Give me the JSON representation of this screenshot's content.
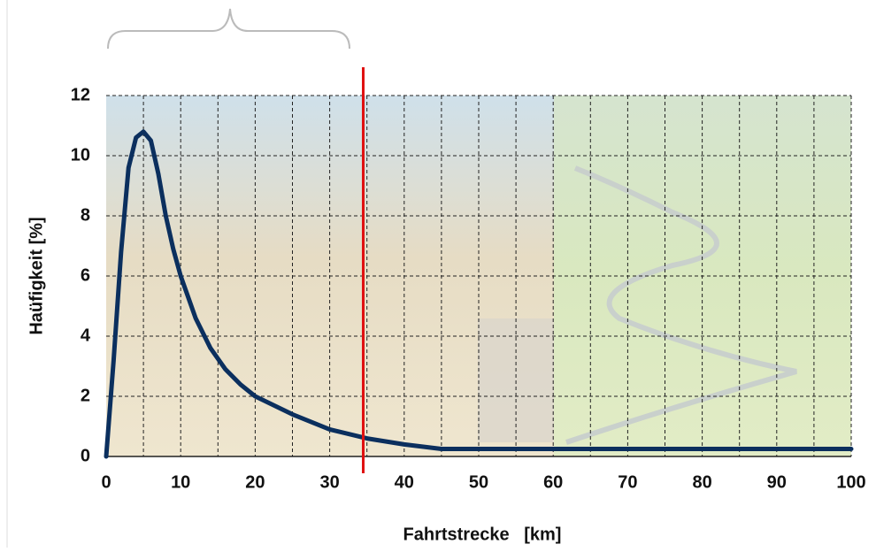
{
  "chart_data": {
    "type": "line",
    "x_label": "Fahrtstrecke   [km]",
    "y_label": "Haüfigkeit [%]",
    "x": [
      0,
      1,
      2,
      3,
      4,
      5,
      6,
      7,
      8,
      9,
      10,
      12,
      14,
      16,
      18,
      20,
      25,
      30,
      35,
      40,
      45,
      50,
      60,
      70,
      80,
      90,
      100
    ],
    "series": [
      {
        "name": "Häufigkeit",
        "color": "#0b2f5e",
        "values": [
          0,
          3.2,
          6.8,
          9.6,
          10.6,
          10.8,
          10.5,
          9.4,
          8.0,
          6.9,
          6.0,
          4.6,
          3.6,
          2.9,
          2.4,
          2.0,
          1.4,
          0.9,
          0.6,
          0.4,
          0.25,
          0.25,
          0.25,
          0.25,
          0.25,
          0.25,
          0.25
        ]
      }
    ],
    "xlim": [
      0,
      100
    ],
    "xticks": [
      0,
      10,
      20,
      30,
      40,
      50,
      60,
      70,
      80,
      90,
      100
    ],
    "x_minor_grid": [
      5,
      15,
      25,
      35,
      45,
      55,
      65,
      75,
      85,
      95
    ],
    "ylim": [
      0,
      12
    ],
    "yticks": [
      0,
      2,
      4,
      6,
      8,
      10,
      12
    ],
    "grid": true,
    "reference_line": {
      "x": 34.5,
      "color": "#e01010"
    }
  }
}
